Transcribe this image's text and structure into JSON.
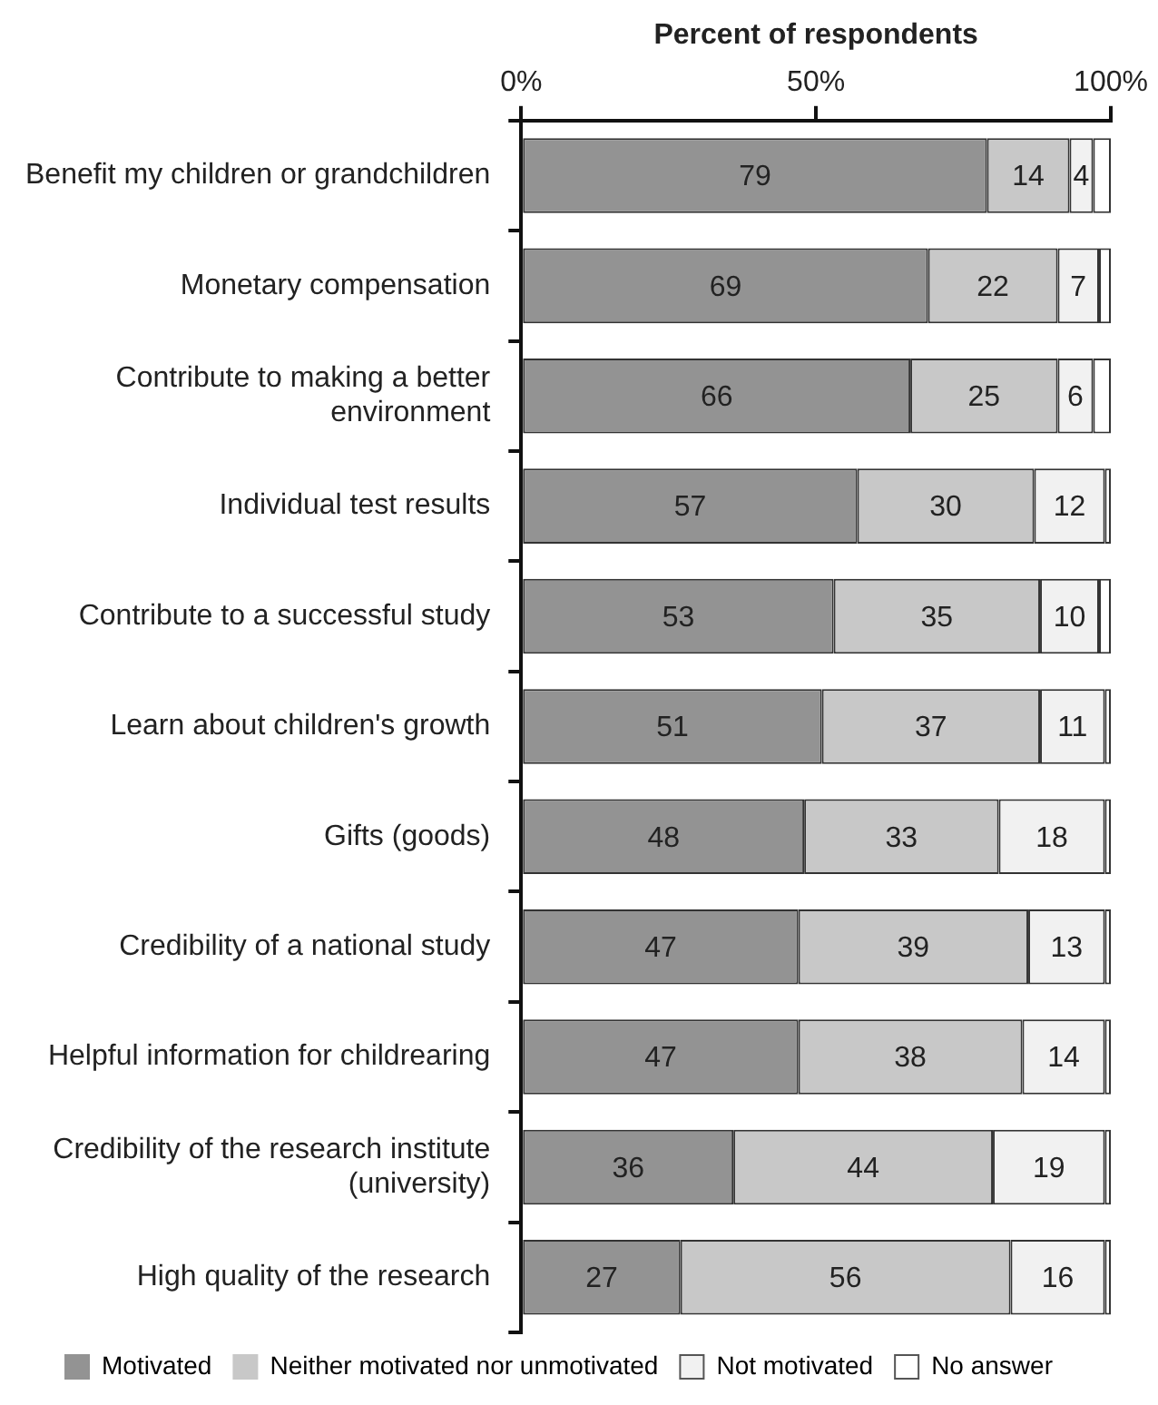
{
  "chart_data": {
    "type": "bar",
    "orientation": "horizontal",
    "stacked": true,
    "xlabel": "Percent of respondents",
    "categories": [
      "Benefit my children or grandchildren",
      "Monetary compensation",
      "Contribute to making a better environment",
      "Individual test results",
      "Contribute to a successful study",
      "Learn about children's growth",
      "Gifts (goods)",
      "Credibility of a national study",
      "Helpful information for childrearing",
      "Credibility of the research institute (university)",
      "High quality of the research"
    ],
    "series": [
      {
        "name": "Motivated",
        "color": "#939393",
        "values": [
          79,
          69,
          66,
          57,
          53,
          51,
          48,
          47,
          47,
          36,
          27
        ],
        "value_labels": [
          "79",
          "69",
          "66",
          "57",
          "53",
          "51",
          "48",
          "47",
          "47",
          "36",
          "27"
        ]
      },
      {
        "name": "Neither motivated nor unmotivated",
        "color": "#c8c8c8",
        "values": [
          14,
          22,
          25,
          30,
          35,
          37,
          33,
          39,
          38,
          44,
          56
        ],
        "value_labels": [
          "14",
          "22",
          "25",
          "30",
          "35",
          "37",
          "33",
          "39",
          "38",
          "44",
          "56"
        ]
      },
      {
        "name": "Not motivated",
        "color": "#f1f1f1",
        "values": [
          4,
          7,
          6,
          12,
          10,
          11,
          18,
          13,
          14,
          19,
          16
        ],
        "value_labels": [
          "4",
          "7",
          "6",
          "12",
          "10",
          "11",
          "18",
          "13",
          "14",
          "19",
          "16"
        ]
      },
      {
        "name": "No answer",
        "color": "#ffffff",
        "values": [
          3,
          2,
          3,
          1,
          2,
          1,
          1,
          1,
          1,
          1,
          1
        ]
      }
    ],
    "xlim": [
      0,
      100
    ],
    "xticks": [
      {
        "value": 0,
        "label": "0%"
      },
      {
        "value": 50,
        "label": "50%"
      },
      {
        "value": 100,
        "label": "100%"
      }
    ],
    "grid": false,
    "legend": "bottom"
  }
}
